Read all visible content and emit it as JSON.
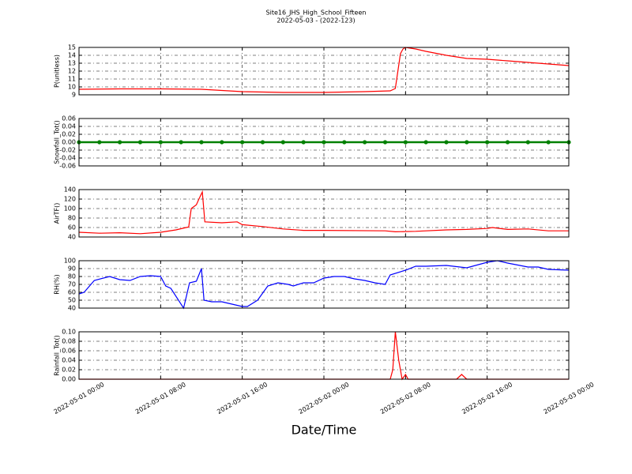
{
  "title": "Site16_JHS_High_School_Fifteen",
  "subtitle": "2022-05-03 - (2022-123)",
  "chart_data": [
    {
      "type": "line",
      "ylabel": "P(unitless)",
      "color": "#ff0000",
      "x": [
        "2022-05-01 00:00",
        "2022-05-01 04:00",
        "2022-05-01 08:00",
        "2022-05-01 12:00",
        "2022-05-01 16:00",
        "2022-05-01 20:00",
        "2022-05-02 00:00",
        "2022-05-02 04:00",
        "2022-05-02 06:30",
        "2022-05-02 07:00",
        "2022-05-02 07:15",
        "2022-05-02 07:30",
        "2022-05-02 07:45",
        "2022-05-02 08:00",
        "2022-05-02 09:00",
        "2022-05-02 10:00",
        "2022-05-02 12:00",
        "2022-05-02 14:00",
        "2022-05-02 16:00",
        "2022-05-02 18:00",
        "2022-05-02 20:00",
        "2022-05-02 22:00",
        "2022-05-03 00:00"
      ],
      "values": [
        9.7,
        9.75,
        9.75,
        9.7,
        9.4,
        9.3,
        9.3,
        9.4,
        9.5,
        9.8,
        12,
        14.2,
        14.8,
        15,
        14.8,
        14.5,
        14,
        13.6,
        13.5,
        13.3,
        13.1,
        12.9,
        12.7
      ],
      "xlim": [
        "2022-05-01 00:00",
        "2022-05-03 00:00"
      ],
      "xticks": [
        "2022-05-01 00:00",
        "2022-05-01 08:00",
        "2022-05-01 16:00",
        "2022-05-02 00:00",
        "2022-05-02 08:00",
        "2022-05-02 16:00",
        "2022-05-03 00:00"
      ],
      "ylim": [
        9,
        15
      ],
      "yticks": [
        9,
        10,
        11,
        12,
        13,
        14,
        15
      ],
      "grid": true
    },
    {
      "type": "line",
      "ylabel": "Snowfall_Tot()",
      "color": "#008000",
      "marker": "o",
      "x": [
        "2022-05-01 00:00",
        "2022-05-01 02:00",
        "2022-05-01 04:00",
        "2022-05-01 06:00",
        "2022-05-01 08:00",
        "2022-05-01 10:00",
        "2022-05-01 12:00",
        "2022-05-01 14:00",
        "2022-05-01 16:00",
        "2022-05-01 18:00",
        "2022-05-01 20:00",
        "2022-05-01 22:00",
        "2022-05-02 00:00",
        "2022-05-02 02:00",
        "2022-05-02 04:00",
        "2022-05-02 06:00",
        "2022-05-02 08:00",
        "2022-05-02 10:00",
        "2022-05-02 12:00",
        "2022-05-02 14:00",
        "2022-05-02 16:00",
        "2022-05-02 18:00",
        "2022-05-02 20:00",
        "2022-05-02 22:00",
        "2022-05-03 00:00"
      ],
      "values": [
        0,
        0,
        0,
        0,
        0,
        0,
        0,
        0,
        0,
        0,
        0,
        0,
        0,
        0,
        0,
        0,
        0,
        0,
        0,
        0,
        0,
        0,
        0,
        0,
        0
      ],
      "xlim": [
        "2022-05-01 00:00",
        "2022-05-03 00:00"
      ],
      "xticks": [
        "2022-05-01 00:00",
        "2022-05-01 08:00",
        "2022-05-01 16:00",
        "2022-05-02 00:00",
        "2022-05-02 08:00",
        "2022-05-02 16:00",
        "2022-05-03 00:00"
      ],
      "ylim": [
        -0.06,
        0.06
      ],
      "yticks": [
        -0.06,
        -0.04,
        -0.02,
        {
          "value": 0,
          "label": "0.00"
        },
        0.02,
        0.04,
        0.06
      ],
      "grid": true
    },
    {
      "type": "line",
      "ylabel": "AirTF()",
      "color": "#ff0000",
      "x": [
        "2022-05-01 00:00",
        "2022-05-01 02:00",
        "2022-05-01 04:00",
        "2022-05-01 06:00",
        "2022-05-01 08:00",
        "2022-05-01 09:30",
        "2022-05-01 10:30",
        "2022-05-01 10:45",
        "2022-05-01 11:00",
        "2022-05-01 11:30",
        "2022-05-01 11:45",
        "2022-05-01 12:05",
        "2022-05-01 12:20",
        "2022-05-01 14:00",
        "2022-05-01 15:30",
        "2022-05-01 16:00",
        "2022-05-01 18:00",
        "2022-05-01 20:00",
        "2022-05-01 22:00",
        "2022-05-02 00:00",
        "2022-05-02 06:00",
        "2022-05-02 07:00",
        "2022-05-02 09:00",
        "2022-05-02 12:00",
        "2022-05-02 14:00",
        "2022-05-02 16:00",
        "2022-05-02 16:30",
        "2022-05-02 18:00",
        "2022-05-02 20:00",
        "2022-05-02 22:00",
        "2022-05-03 00:00"
      ],
      "values": [
        50,
        48,
        49,
        47,
        50,
        55,
        60,
        61,
        100,
        108,
        120,
        135,
        72,
        70,
        72,
        66,
        62,
        57,
        54,
        54,
        53,
        51,
        52,
        55,
        56,
        58,
        60,
        56,
        57,
        53,
        53
      ],
      "xlim": [
        "2022-05-01 00:00",
        "2022-05-03 00:00"
      ],
      "xticks": [
        "2022-05-01 00:00",
        "2022-05-01 08:00",
        "2022-05-01 16:00",
        "2022-05-02 00:00",
        "2022-05-02 08:00",
        "2022-05-02 16:00",
        "2022-05-03 00:00"
      ],
      "ylim": [
        40,
        140
      ],
      "yticks": [
        40,
        60,
        80,
        100,
        120,
        140
      ],
      "grid": true
    },
    {
      "type": "line",
      "ylabel": "RH(%)",
      "color": "#0000ff",
      "x": [
        "2022-05-01 00:00",
        "2022-05-01 00:30",
        "2022-05-01 01:30",
        "2022-05-01 03:00",
        "2022-05-01 04:00",
        "2022-05-01 05:00",
        "2022-05-01 06:00",
        "2022-05-01 07:00",
        "2022-05-01 08:00",
        "2022-05-01 08:30",
        "2022-05-01 09:00",
        "2022-05-01 10:15",
        "2022-05-01 10:50",
        "2022-05-01 11:30",
        "2022-05-01 12:00",
        "2022-05-01 12:15",
        "2022-05-01 13:00",
        "2022-05-01 14:00",
        "2022-05-01 15:00",
        "2022-05-01 16:00",
        "2022-05-01 16:30",
        "2022-05-01 17:30",
        "2022-05-01 18:30",
        "2022-05-01 19:30",
        "2022-05-01 20:30",
        "2022-05-01 21:00",
        "2022-05-01 22:00",
        "2022-05-01 23:00",
        "2022-05-02 00:00",
        "2022-05-02 01:00",
        "2022-05-02 02:00",
        "2022-05-02 03:00",
        "2022-05-02 04:00",
        "2022-05-02 05:00",
        "2022-05-02 06:00",
        "2022-05-02 06:30",
        "2022-05-02 08:00",
        "2022-05-02 09:00",
        "2022-05-02 10:00",
        "2022-05-02 12:00",
        "2022-05-02 14:00",
        "2022-05-02 16:00",
        "2022-05-02 17:00",
        "2022-05-02 18:00",
        "2022-05-02 20:00",
        "2022-05-02 21:00",
        "2022-05-02 22:00",
        "2022-05-03 00:00"
      ],
      "values": [
        58,
        60,
        75,
        80,
        76,
        75,
        80,
        81,
        80,
        68,
        65,
        40,
        72,
        74,
        90,
        50,
        48,
        48,
        45,
        42,
        42,
        50,
        68,
        72,
        70,
        68,
        72,
        72,
        78,
        80,
        80,
        77,
        75,
        72,
        70,
        82,
        88,
        93,
        93,
        94,
        91,
        98,
        100,
        97,
        92,
        92,
        89,
        88
      ],
      "xlim": [
        "2022-05-01 00:00",
        "2022-05-03 00:00"
      ],
      "xticks": [
        "2022-05-01 00:00",
        "2022-05-01 08:00",
        "2022-05-01 16:00",
        "2022-05-02 00:00",
        "2022-05-02 08:00",
        "2022-05-02 16:00",
        "2022-05-03 00:00"
      ],
      "ylim": [
        40,
        100
      ],
      "yticks": [
        40,
        50,
        60,
        70,
        80,
        90,
        100
      ],
      "grid": true
    },
    {
      "type": "line",
      "ylabel": "Rainfall_Tot()",
      "xlabel": "Date/Time",
      "color": "#ff0000",
      "x": [
        "2022-05-01 00:00",
        "2022-05-02 06:30",
        "2022-05-02 06:45",
        "2022-05-02 07:00",
        "2022-05-02 07:20",
        "2022-05-02 07:40",
        "2022-05-02 08:00",
        "2022-05-02 08:15",
        "2022-05-02 13:00",
        "2022-05-02 13:30",
        "2022-05-02 14:00",
        "2022-05-03 00:00"
      ],
      "values": [
        0,
        0,
        0.02,
        0.1,
        0.04,
        0,
        0.01,
        0,
        0,
        0.01,
        0,
        0
      ],
      "xlim": [
        "2022-05-01 00:00",
        "2022-05-03 00:00"
      ],
      "xticks": [
        "2022-05-01 00:00",
        "2022-05-01 08:00",
        "2022-05-01 16:00",
        "2022-05-02 00:00",
        "2022-05-02 08:00",
        "2022-05-02 16:00",
        "2022-05-03 00:00"
      ],
      "ylim": [
        0,
        0.1
      ],
      "yticks": [
        {
          "value": 0,
          "label": "0.00"
        },
        0.02,
        0.04,
        0.06,
        0.08,
        {
          "value": 0.1,
          "label": "0.10"
        }
      ],
      "grid": true
    }
  ]
}
